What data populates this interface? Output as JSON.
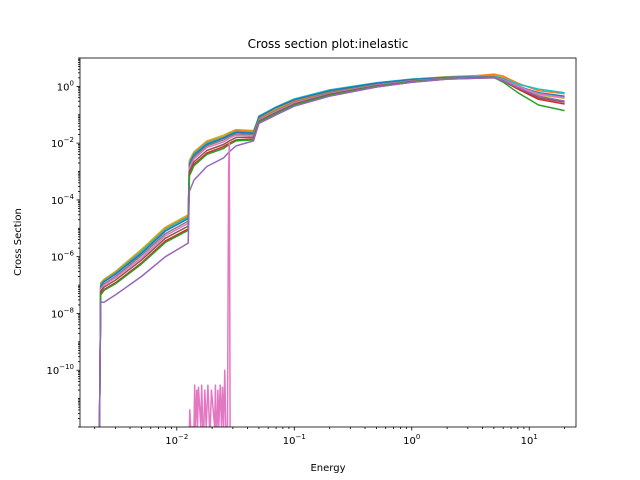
{
  "chart_data": {
    "type": "line",
    "title": "Cross section plot:inelastic",
    "xlabel": "Energy",
    "ylabel": "Cross Section",
    "x_scale": "log",
    "y_scale": "log",
    "xlim": [
      0.0015,
      25
    ],
    "ylim": [
      1e-12,
      10
    ],
    "x_ticks": [
      {
        "value": 0.01,
        "base": "10",
        "exp": "−2"
      },
      {
        "value": 0.1,
        "base": "10",
        "exp": "−1"
      },
      {
        "value": 1,
        "base": "10",
        "exp": "0"
      },
      {
        "value": 10,
        "base": "10",
        "exp": "1"
      }
    ],
    "y_ticks": [
      {
        "value": 1e-10,
        "base": "10",
        "exp": "−10"
      },
      {
        "value": 1e-08,
        "base": "10",
        "exp": "−8"
      },
      {
        "value": 1e-06,
        "base": "10",
        "exp": "−6"
      },
      {
        "value": 0.0001,
        "base": "10",
        "exp": "−4"
      },
      {
        "value": 0.01,
        "base": "10",
        "exp": "−2"
      },
      {
        "value": 1,
        "base": "10",
        "exp": "0"
      }
    ],
    "grid": false,
    "colors": [
      "#1f77b4",
      "#ff7f0e",
      "#2ca02c",
      "#d62728",
      "#9467bd",
      "#8c564b",
      "#e377c2",
      "#7f7f7f",
      "#bcbd22",
      "#17becf"
    ],
    "series": [
      {
        "color": "#bcbd22",
        "x": [
          0.0022,
          0.00225,
          0.0024,
          0.003,
          0.005,
          0.008,
          0.0125,
          0.0128,
          0.014,
          0.018,
          0.025,
          0.028,
          0.032,
          0.045,
          0.05,
          0.07,
          0.1,
          0.2,
          0.5,
          1,
          2,
          3.5,
          5,
          6,
          8,
          12,
          20
        ],
        "y": [
          1e-12,
          1.2e-07,
          1.6e-07,
          3e-07,
          1.8e-06,
          1.1e-05,
          3e-05,
          0.0025,
          0.005,
          0.012,
          0.019,
          0.024,
          0.03,
          0.028,
          0.08,
          0.16,
          0.32,
          0.68,
          1.3,
          1.8,
          2.2,
          2.4,
          2.6,
          2.1,
          1.1,
          0.5,
          0.38
        ]
      },
      {
        "color": "#ff7f0e",
        "x": [
          0.0022,
          0.00225,
          0.0024,
          0.003,
          0.005,
          0.008,
          0.0125,
          0.0128,
          0.014,
          0.018,
          0.025,
          0.028,
          0.032,
          0.045,
          0.05,
          0.07,
          0.1,
          0.2,
          0.5,
          1,
          2,
          3.5,
          5,
          6,
          8,
          12,
          20
        ],
        "y": [
          1e-12,
          1.1e-07,
          1.5e-07,
          2.8e-07,
          1.6e-06,
          1e-05,
          2.7e-05,
          0.0022,
          0.0045,
          0.011,
          0.017,
          0.022,
          0.028,
          0.026,
          0.075,
          0.15,
          0.3,
          0.65,
          1.25,
          1.75,
          2.15,
          2.35,
          2.7,
          2.3,
          1.3,
          0.7,
          0.55
        ]
      },
      {
        "color": "#17becf",
        "x": [
          0.0022,
          0.00225,
          0.0024,
          0.003,
          0.005,
          0.008,
          0.0125,
          0.0128,
          0.014,
          0.018,
          0.025,
          0.028,
          0.032,
          0.045,
          0.05,
          0.07,
          0.1,
          0.2,
          0.5,
          1,
          2,
          3.5,
          5,
          6,
          8,
          12,
          20
        ],
        "y": [
          1e-12,
          1e-07,
          1.4e-07,
          2.6e-07,
          1.5e-06,
          9e-06,
          2.5e-05,
          0.002,
          0.0042,
          0.01,
          0.016,
          0.02,
          0.026,
          0.024,
          0.09,
          0.19,
          0.36,
          0.75,
          1.35,
          1.8,
          2.1,
          2.2,
          2.3,
          1.9,
          1.2,
          0.8,
          0.6
        ]
      },
      {
        "color": "#1f77b4",
        "x": [
          0.0022,
          0.00225,
          0.0024,
          0.003,
          0.005,
          0.008,
          0.0125,
          0.0128,
          0.014,
          0.018,
          0.025,
          0.028,
          0.032,
          0.045,
          0.05,
          0.07,
          0.1,
          0.2,
          0.5,
          1,
          2,
          3.5,
          5,
          6,
          8,
          12,
          20
        ],
        "y": [
          1e-12,
          9e-08,
          1.3e-07,
          2.4e-07,
          1.3e-06,
          8e-06,
          2.2e-05,
          0.0018,
          0.0038,
          0.009,
          0.015,
          0.019,
          0.024,
          0.022,
          0.085,
          0.18,
          0.34,
          0.7,
          1.3,
          1.75,
          2.05,
          2.15,
          2.2,
          1.8,
          1.0,
          0.6,
          0.45
        ]
      },
      {
        "color": "#7f7f7f",
        "x": [
          0.0022,
          0.00225,
          0.0024,
          0.003,
          0.005,
          0.008,
          0.0125,
          0.0128,
          0.014,
          0.018,
          0.025,
          0.028,
          0.032,
          0.045,
          0.05,
          0.07,
          0.1,
          0.2,
          0.5,
          1,
          2,
          3.5,
          5,
          6,
          8,
          12,
          20
        ],
        "y": [
          1e-12,
          8e-08,
          1.1e-07,
          2e-07,
          1.1e-06,
          6.5e-06,
          1.8e-05,
          0.0015,
          0.0032,
          0.008,
          0.013,
          0.017,
          0.021,
          0.02,
          0.07,
          0.14,
          0.28,
          0.6,
          1.15,
          1.6,
          1.95,
          2.1,
          2.15,
          1.7,
          0.9,
          0.45,
          0.3
        ]
      },
      {
        "color": "#e377c2",
        "x": [
          0.0022,
          0.00225,
          0.0024,
          0.003,
          0.005,
          0.008,
          0.0125,
          0.0128,
          0.014,
          0.018,
          0.025,
          0.028,
          0.032,
          0.045,
          0.05,
          0.07,
          0.1,
          0.2,
          0.5,
          1,
          2,
          3.5,
          5,
          6,
          8,
          12,
          20
        ],
        "y": [
          1e-12,
          7e-08,
          1e-07,
          1.8e-07,
          9e-07,
          5.5e-06,
          1.5e-05,
          0.0013,
          0.0028,
          0.007,
          0.011,
          0.015,
          0.019,
          0.018,
          0.065,
          0.13,
          0.26,
          0.55,
          1.1,
          1.55,
          1.9,
          2.05,
          2.1,
          1.75,
          1.0,
          0.55,
          0.4
        ]
      },
      {
        "color": "#8c564b",
        "x": [
          0.0022,
          0.00225,
          0.0024,
          0.003,
          0.005,
          0.008,
          0.0125,
          0.0128,
          0.014,
          0.018,
          0.025,
          0.028,
          0.032,
          0.045,
          0.05,
          0.07,
          0.1,
          0.2,
          0.5,
          1,
          2,
          3.5,
          5,
          6,
          8,
          12,
          20
        ],
        "y": [
          1e-12,
          6e-08,
          8.5e-08,
          1.5e-07,
          7.5e-07,
          4.5e-06,
          1.2e-05,
          0.001,
          0.0022,
          0.0055,
          0.009,
          0.012,
          0.016,
          0.016,
          0.06,
          0.12,
          0.24,
          0.52,
          1.05,
          1.5,
          1.85,
          2.0,
          2.05,
          1.6,
          0.85,
          0.4,
          0.28
        ]
      },
      {
        "color": "#d62728",
        "x": [
          0.0022,
          0.00225,
          0.0024,
          0.003,
          0.005,
          0.008,
          0.0125,
          0.0128,
          0.014,
          0.018,
          0.025,
          0.028,
          0.032,
          0.045,
          0.05,
          0.07,
          0.1,
          0.2,
          0.5,
          1,
          2,
          3.5,
          5,
          6,
          8,
          12,
          20
        ],
        "y": [
          1e-12,
          5e-08,
          7e-08,
          1.2e-07,
          6e-07,
          3.6e-06,
          9.5e-06,
          0.0008,
          0.0018,
          0.0045,
          0.0075,
          0.01,
          0.013,
          0.014,
          0.05,
          0.1,
          0.21,
          0.46,
          0.95,
          1.4,
          1.8,
          1.95,
          2.0,
          1.55,
          0.8,
          0.35,
          0.24
        ]
      },
      {
        "color": "#2ca02c",
        "x": [
          0.0022,
          0.00225,
          0.0024,
          0.003,
          0.005,
          0.008,
          0.0125,
          0.0128,
          0.014,
          0.018,
          0.025,
          0.028,
          0.032,
          0.045,
          0.05,
          0.07,
          0.1,
          0.2,
          0.5,
          1,
          2,
          3.5,
          5,
          6,
          8,
          12,
          20
        ],
        "y": [
          1e-12,
          4.5e-08,
          6.5e-08,
          1.1e-07,
          5.5e-07,
          3.2e-06,
          8.5e-06,
          0.0007,
          0.0016,
          0.004,
          0.0065,
          0.009,
          0.012,
          0.013,
          0.055,
          0.11,
          0.22,
          0.48,
          1.0,
          1.45,
          1.85,
          2.0,
          2.05,
          1.4,
          0.6,
          0.22,
          0.14
        ]
      },
      {
        "color": "#9467bd",
        "x": [
          0.0022,
          0.00225,
          0.0024,
          0.003,
          0.005,
          0.008,
          0.0125,
          0.0128,
          0.014,
          0.018,
          0.025,
          0.028,
          0.032,
          0.045,
          0.05,
          0.07,
          0.1,
          0.2,
          0.5,
          1,
          2,
          3.5,
          5,
          6,
          8,
          12,
          20
        ],
        "y": [
          1e-12,
          2.5e-08,
          2.5e-08,
          4.5e-08,
          2e-07,
          1e-06,
          3e-06,
          0.0002,
          0.0005,
          0.0015,
          0.003,
          0.005,
          0.008,
          0.012,
          0.05,
          0.1,
          0.2,
          0.45,
          0.95,
          1.4,
          1.8,
          1.95,
          2.0,
          1.6,
          0.9,
          0.45,
          0.3
        ]
      },
      {
        "color": "#e377c2",
        "x": [
          0.0128,
          0.0129,
          0.0131,
          0.014,
          0.0142,
          0.0144,
          0.0148,
          0.015,
          0.0153,
          0.016,
          0.0163,
          0.0166,
          0.017,
          0.0173,
          0.0178,
          0.0184,
          0.019,
          0.0193,
          0.0197,
          0.021,
          0.0213,
          0.0216,
          0.022,
          0.0224,
          0.0228,
          0.0234,
          0.024,
          0.0245,
          0.025,
          0.0256,
          0.0261,
          0.0266,
          0.027,
          0.0276,
          0.028,
          0.0284,
          0.0287
        ],
        "y": [
          1e-12,
          4e-12,
          1e-12,
          1e-12,
          3e-11,
          1e-12,
          2e-11,
          1e-12,
          2.5e-11,
          1e-12,
          3e-11,
          1e-12,
          1e-12,
          2e-11,
          1e-12,
          3e-11,
          1e-12,
          1e-12,
          2e-11,
          1e-12,
          3e-11,
          1e-12,
          1e-12,
          2e-11,
          1e-12,
          3e-11,
          1e-12,
          2.5e-11,
          1e-12,
          1e-10,
          1e-12,
          1e-12,
          1e-12,
          0.001,
          0.01,
          1e-12,
          1e-12
        ]
      }
    ]
  }
}
